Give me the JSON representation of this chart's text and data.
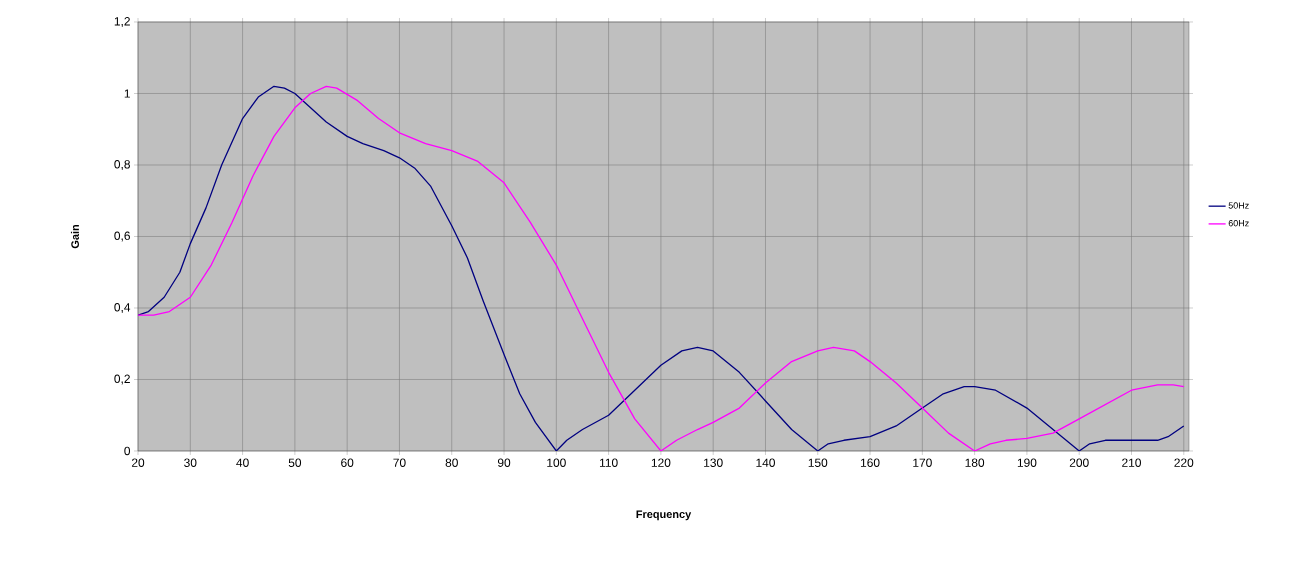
{
  "chart_data": {
    "type": "line",
    "xlabel": "Frequency",
    "ylabel": "Gain",
    "xlim": [
      20,
      221
    ],
    "ylim": [
      0,
      1.2
    ],
    "xticks": [
      20,
      30,
      40,
      50,
      60,
      70,
      80,
      90,
      100,
      110,
      120,
      130,
      140,
      150,
      160,
      170,
      180,
      190,
      200,
      210,
      220
    ],
    "yticks": [
      0,
      {
        "value": 0.2,
        "label": "0,2"
      },
      {
        "value": 0.4,
        "label": "0,4"
      },
      {
        "value": 0.6,
        "label": "0,6"
      },
      {
        "value": 0.8,
        "label": "0,8"
      },
      1,
      {
        "value": 1.2,
        "label": "1,2"
      }
    ],
    "grid": true,
    "legend": "right",
    "marker": "none",
    "line_style": "solid",
    "series": [
      {
        "name": "50Hz",
        "color": "#000080",
        "x": [
          20,
          22,
          25,
          28,
          30,
          33,
          36,
          40,
          43,
          46,
          48,
          50,
          53,
          56,
          60,
          63,
          67,
          70,
          73,
          76,
          80,
          83,
          86,
          90,
          93,
          96,
          100,
          102,
          105,
          110,
          115,
          120,
          124,
          127,
          130,
          135,
          140,
          145,
          150,
          152,
          155,
          160,
          165,
          170,
          174,
          178,
          180,
          184,
          190,
          195,
          200,
          202,
          205,
          210,
          215,
          217,
          220
        ],
        "values": [
          0.38,
          0.39,
          0.43,
          0.5,
          0.58,
          0.68,
          0.8,
          0.93,
          0.99,
          1.02,
          1.015,
          1.0,
          0.96,
          0.92,
          0.88,
          0.86,
          0.84,
          0.82,
          0.79,
          0.74,
          0.63,
          0.54,
          0.42,
          0.27,
          0.16,
          0.08,
          0.0,
          0.03,
          0.06,
          0.1,
          0.17,
          0.24,
          0.28,
          0.29,
          0.28,
          0.22,
          0.14,
          0.06,
          0.0,
          0.02,
          0.03,
          0.04,
          0.07,
          0.12,
          0.16,
          0.18,
          0.18,
          0.17,
          0.12,
          0.06,
          0.0,
          0.02,
          0.03,
          0.03,
          0.03,
          0.04,
          0.07
        ]
      },
      {
        "name": "60Hz",
        "color": "#ff00ff",
        "x": [
          20,
          23,
          26,
          30,
          34,
          38,
          42,
          46,
          50,
          53,
          56,
          58,
          62,
          66,
          70,
          75,
          80,
          85,
          90,
          95,
          100,
          105,
          110,
          115,
          120,
          123,
          127,
          130,
          135,
          140,
          145,
          150,
          153,
          157,
          160,
          165,
          170,
          175,
          180,
          183,
          186,
          190,
          195,
          200,
          205,
          210,
          215,
          218,
          220
        ],
        "values": [
          0.38,
          0.38,
          0.39,
          0.43,
          0.52,
          0.64,
          0.77,
          0.88,
          0.96,
          1.0,
          1.02,
          1.015,
          0.98,
          0.93,
          0.89,
          0.86,
          0.84,
          0.81,
          0.75,
          0.64,
          0.52,
          0.37,
          0.22,
          0.09,
          0.0,
          0.03,
          0.06,
          0.08,
          0.12,
          0.19,
          0.25,
          0.28,
          0.29,
          0.28,
          0.25,
          0.19,
          0.12,
          0.05,
          0.0,
          0.02,
          0.03,
          0.035,
          0.05,
          0.09,
          0.13,
          0.17,
          0.185,
          0.185,
          0.18
        ]
      }
    ]
  }
}
